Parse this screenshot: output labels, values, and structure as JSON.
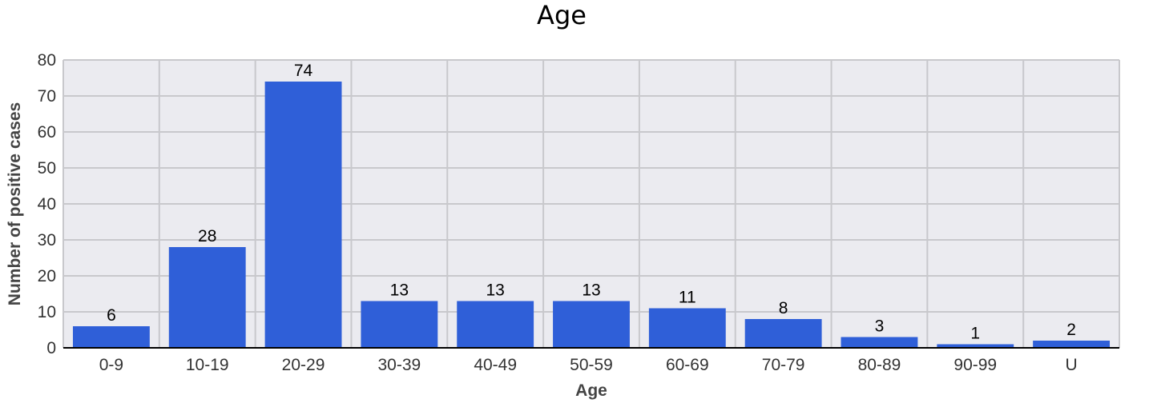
{
  "chart_data": {
    "type": "bar",
    "title": "Age",
    "xlabel": "Age",
    "ylabel": "Number of positive cases",
    "categories": [
      "0-9",
      "10-19",
      "20-29",
      "30-39",
      "40-49",
      "50-59",
      "60-69",
      "70-79",
      "80-89",
      "90-99",
      "U"
    ],
    "values": [
      6,
      28,
      74,
      13,
      13,
      13,
      11,
      8,
      3,
      1,
      2
    ],
    "ylim": [
      0,
      80
    ],
    "yticks": [
      0,
      10,
      20,
      30,
      40,
      50,
      60,
      70,
      80
    ],
    "grid": true,
    "legend": "none",
    "colors": {
      "bar": "#2f5fd8",
      "plot_background": "#ebebf0",
      "grid": "#c8c8cc"
    }
  }
}
